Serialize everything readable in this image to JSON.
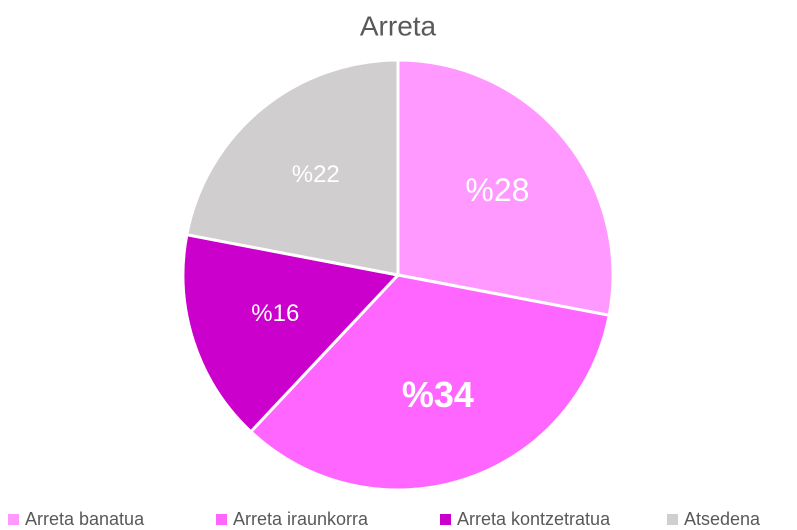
{
  "chart_data": {
    "type": "pie",
    "title": "Arreta",
    "categories": [
      "Arreta banatua",
      "Arreta iraunkorra",
      "Arreta kontzetratua",
      "Atsedena"
    ],
    "values": [
      28,
      34,
      16,
      22
    ],
    "value_labels": [
      "%28",
      "%34",
      "%16",
      "%22"
    ],
    "colors": [
      "#ff99ff",
      "#ff66ff",
      "#cc00cc",
      "#d0cece"
    ],
    "legend": "bottom"
  }
}
